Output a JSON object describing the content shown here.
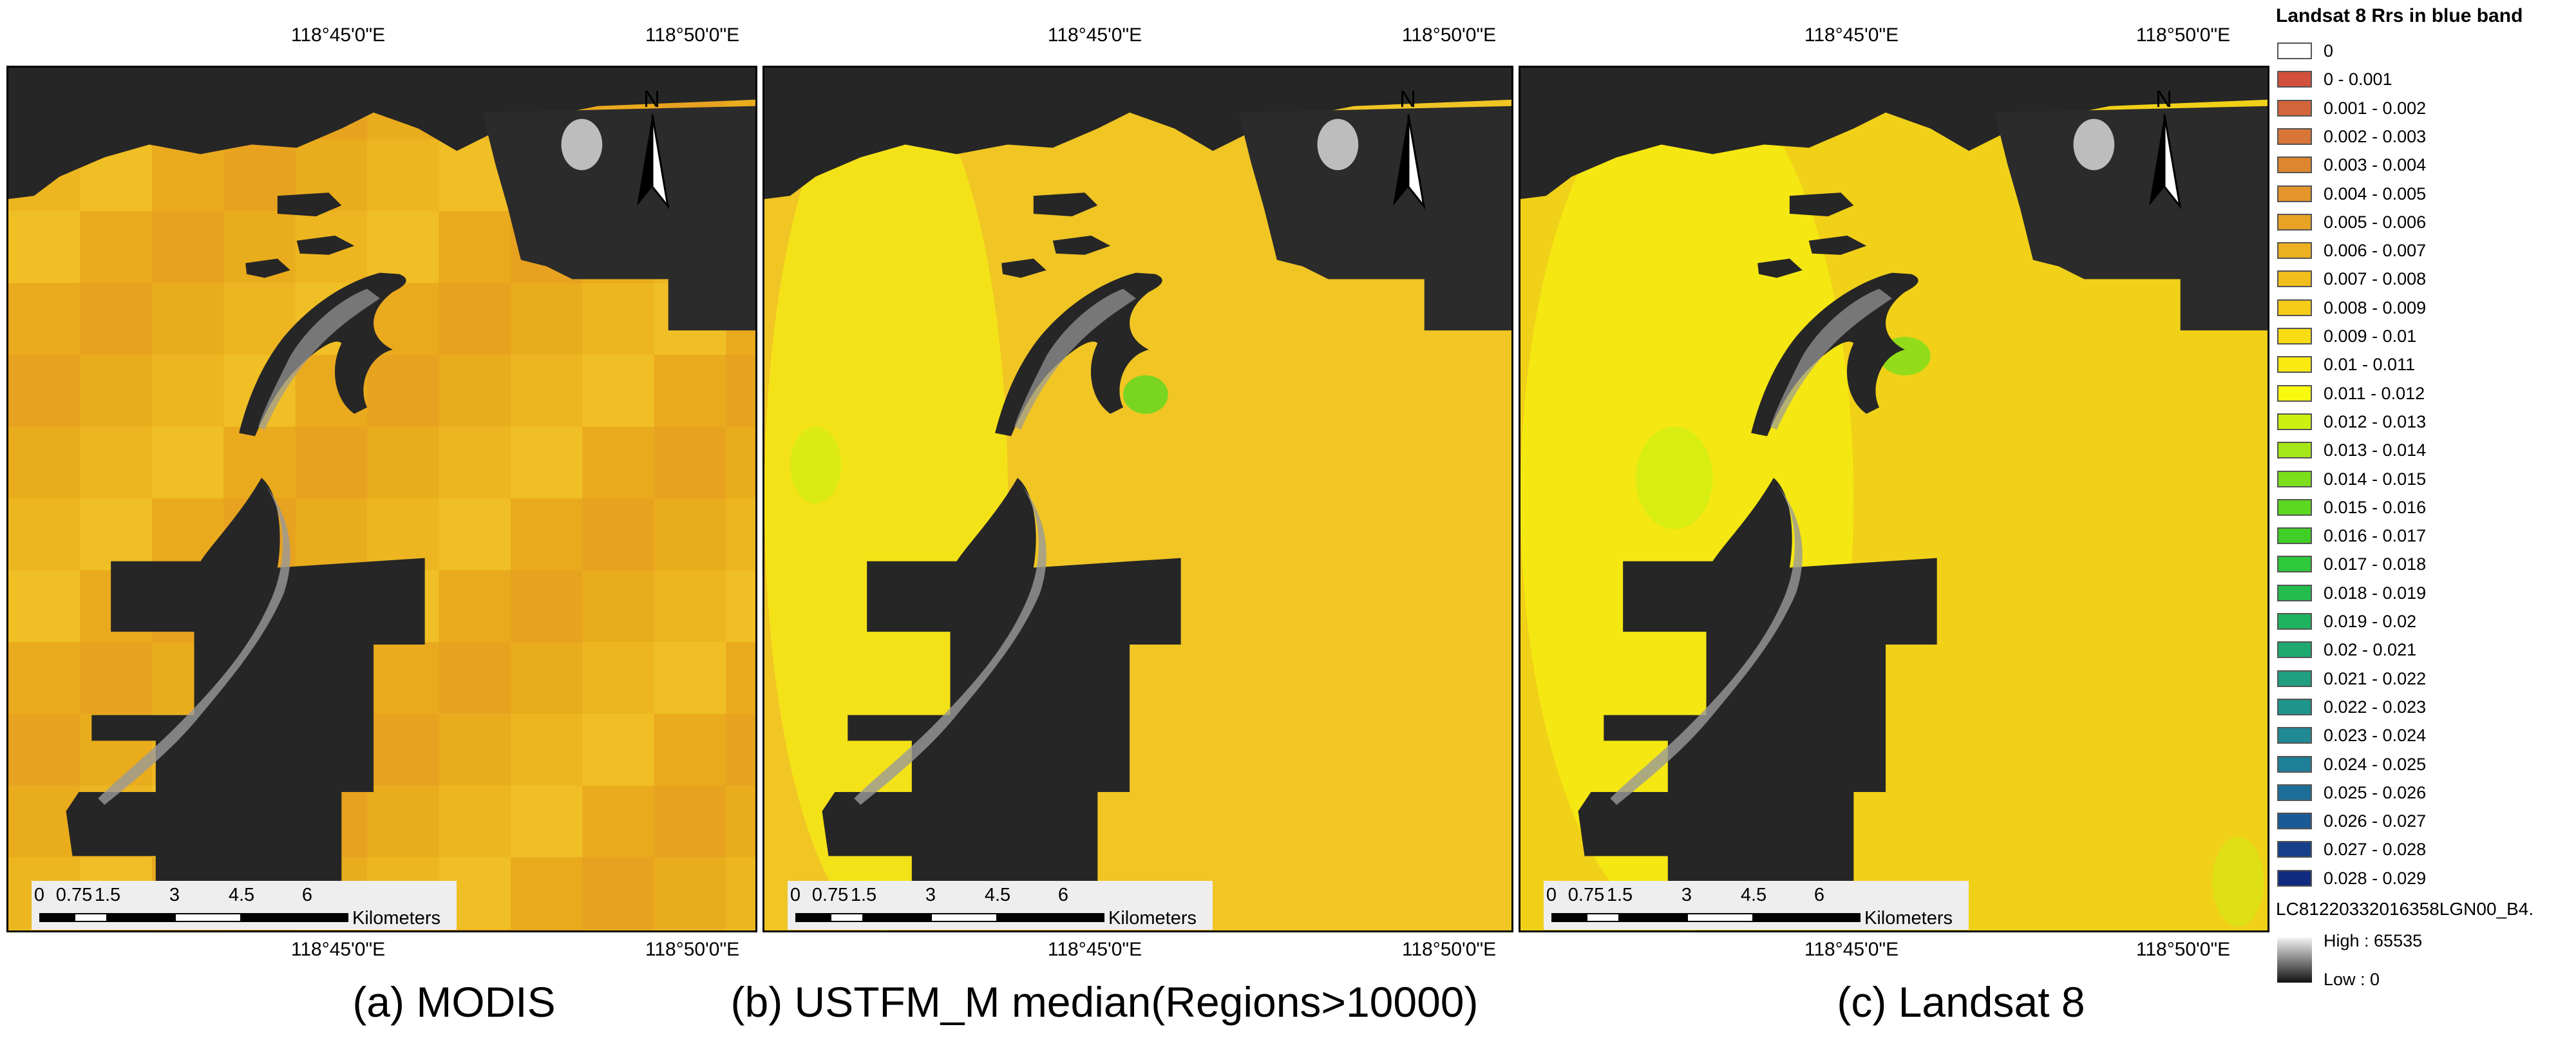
{
  "panels": [
    {
      "caption": "(a) MODIS",
      "water": "#ecb11e",
      "mode": "modis"
    },
    {
      "caption": "(b) USTFM_M median(Regions>10000)",
      "water": "#f0c524",
      "mode": "ustfm"
    },
    {
      "caption": "(c) Landsat 8",
      "water": "#f1d018",
      "mode": "landsat"
    }
  ],
  "axis_labels": {
    "top_left": "118°45'0\"E",
    "top_right": "118°50'0\"E",
    "bottom_left": "118°45'0\"E",
    "bottom_right": "118°50'0\"E"
  },
  "scalebar": {
    "ticks": [
      "0",
      "0.75",
      "1.5",
      "3",
      "4.5",
      "6"
    ],
    "unit": "Kilometers"
  },
  "north_label": "N",
  "legend": {
    "title": "Landsat 8 Rrs in blue band",
    "items": [
      {
        "label": "0",
        "color": "#ffffff"
      },
      {
        "label": "0 - 0.001",
        "color": "#d2503c"
      },
      {
        "label": "0.001 - 0.002",
        "color": "#d2653a"
      },
      {
        "label": "0.002 - 0.003",
        "color": "#d87637"
      },
      {
        "label": "0.003 - 0.004",
        "color": "#de8530"
      },
      {
        "label": "0.004 - 0.005",
        "color": "#e4952b"
      },
      {
        "label": "0.005 - 0.006",
        "color": "#e8a326"
      },
      {
        "label": "0.006 - 0.007",
        "color": "#ecb020"
      },
      {
        "label": "0.007 - 0.008",
        "color": "#f1be1d"
      },
      {
        "label": "0.008 - 0.009",
        "color": "#f5cc18"
      },
      {
        "label": "0.009 - 0.01",
        "color": "#f9dc14"
      },
      {
        "label": "0.01  - 0.011",
        "color": "#fbea10"
      },
      {
        "label": "0.011 - 0.012",
        "color": "#f7f90f"
      },
      {
        "label": "0.012 - 0.013",
        "color": "#ccf012"
      },
      {
        "label": "0.013 - 0.014",
        "color": "#a4e618"
      },
      {
        "label": "0.014 - 0.015",
        "color": "#7cde1c"
      },
      {
        "label": "0.015 - 0.016",
        "color": "#5bd81f"
      },
      {
        "label": "0.016 - 0.017",
        "color": "#3fcf26"
      },
      {
        "label": "0.017 - 0.018",
        "color": "#2ec83a"
      },
      {
        "label": "0.018 - 0.019",
        "color": "#22bd4c"
      },
      {
        "label": "0.019 - 0.02",
        "color": "#1fb35f"
      },
      {
        "label": "0.02 - 0.021",
        "color": "#1fa970"
      },
      {
        "label": "0.021 - 0.022",
        "color": "#1f9f80"
      },
      {
        "label": "0.022 - 0.023",
        "color": "#20958c"
      },
      {
        "label": "0.023 - 0.024",
        "color": "#208a94"
      },
      {
        "label": "0.024 - 0.025",
        "color": "#1f7f98"
      },
      {
        "label": "0.025 - 0.026",
        "color": "#1d6e98"
      },
      {
        "label": "0.026 - 0.027",
        "color": "#1a5a96"
      },
      {
        "label": "0.027 - 0.028",
        "color": "#163f8c"
      },
      {
        "label": "0.028 - 0.029",
        "color": "#102a80"
      }
    ],
    "layer_name": "LC81220332016358LGN00_B4.",
    "high_label": "High : 65535",
    "low_label": "Low : 0"
  }
}
